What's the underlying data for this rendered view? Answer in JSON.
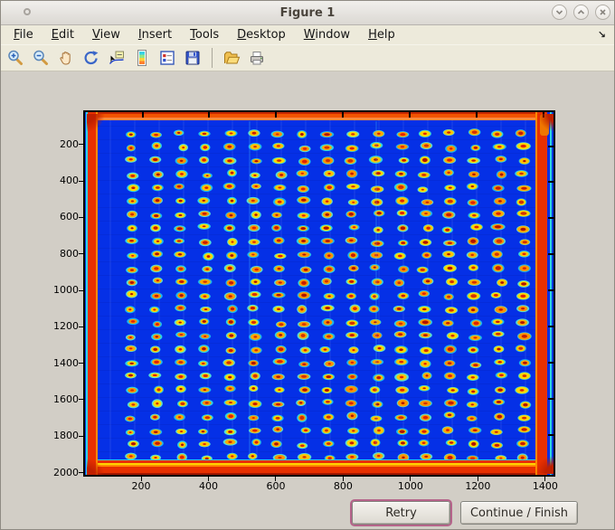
{
  "window": {
    "title": "Figure 1"
  },
  "titlebar": {
    "controls": [
      {
        "name": "minimize",
        "glyph": "chevron-down"
      },
      {
        "name": "maximize",
        "glyph": "chevron-up"
      },
      {
        "name": "close",
        "glyph": "x"
      }
    ]
  },
  "menu": {
    "items": [
      "File",
      "Edit",
      "View",
      "Insert",
      "Tools",
      "Desktop",
      "Window",
      "Help"
    ],
    "dock_arrow": "↘"
  },
  "toolbar": {
    "icons": [
      "zoom-in",
      "zoom-out",
      "pan",
      "rotate-3d",
      "data-cursor",
      "insert-colorbar",
      "insert-legend",
      "save-figure",
      "open-file",
      "print-figure"
    ],
    "separator_after_index": 7
  },
  "figure": {
    "plot": {
      "type": "heatmap",
      "description": "Microarray plate scan shown with jet colormap: grid of assay spots (red cores, yellow-orange rings, cyan halos) on saturated blue background, framed by red/orange border bands",
      "colormap": "jet",
      "x_ticks": [
        200,
        400,
        600,
        800,
        1000,
        1200,
        1400
      ],
      "y_ticks": [
        200,
        400,
        600,
        800,
        1000,
        1200,
        1400,
        1600,
        1800,
        2000
      ],
      "x_range": [
        28,
        1430
      ],
      "y_range": [
        12,
        2022
      ],
      "grid": {
        "rows": 25,
        "cols": 17
      }
    },
    "colors": {
      "canvas_bg": "#d2cec6",
      "chrome_bg": "#edeadb",
      "heat_base": "#0530e6",
      "edge_red": "#e83000",
      "edge_dark_red": "#a01600",
      "edge_orange": "#ff8a00",
      "edge_yellow": "#ffd400",
      "edge_cyan": "#2dd4e6",
      "dot_centers": [
        "#c81c00",
        "#e02400",
        "#d43200",
        "#b01400"
      ],
      "dot_rings": [
        "#ffc400",
        "#ffaa00",
        "#ff9400",
        "#ffd800"
      ],
      "dot_halos": [
        "#28d4e8",
        "#55e0d4",
        "#18b8f0"
      ],
      "retry_focus_ring": "#b5638a"
    }
  },
  "buttons": {
    "retry": "Retry",
    "continue_finish": "Continue / Finish"
  }
}
